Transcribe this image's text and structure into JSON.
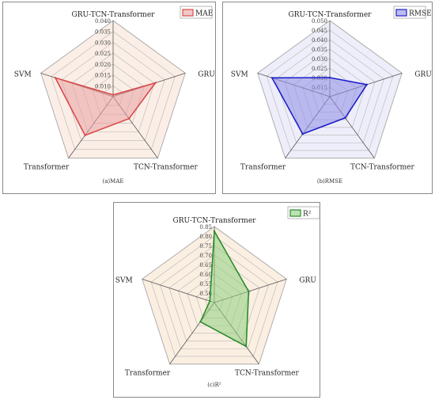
{
  "chart_data": [
    {
      "type": "radar",
      "caption": "(a)MAE",
      "axes": [
        "GRU-TCN-Transformer",
        "GRU",
        "TCN-Transformer",
        "Transformer",
        "SVM"
      ],
      "ticks": [
        "0.010",
        "0.015",
        "0.020",
        "0.025",
        "0.030",
        "0.035",
        "0.040"
      ],
      "rmin": 0.005,
      "rmax": 0.04,
      "series": [
        {
          "name": "MAE",
          "values": [
            0.0058,
            0.0255,
            0.0175,
            0.027,
            0.033
          ]
        }
      ],
      "colors": {
        "line": "#d94a4a",
        "fill": "#e9a2a2",
        "bg": "#fbeee6"
      }
    },
    {
      "type": "radar",
      "caption": "(b)RMSE",
      "axes": [
        "GRU-TCN-Transformer",
        "GRU",
        "TCN-Transformer",
        "Transformer",
        "SVM"
      ],
      "ticks": [
        "0.015",
        "0.020",
        "0.025",
        "0.030",
        "0.035",
        "0.040",
        "0.045",
        "0.050"
      ],
      "rmin": 0.01,
      "rmax": 0.05,
      "series": [
        {
          "name": "RMSE",
          "values": [
            0.02,
            0.0305,
            0.0238,
            0.0343,
            0.042
          ]
        }
      ],
      "colors": {
        "line": "#1f1fc8",
        "fill": "#8e8ee6",
        "bg": "#eeeefa"
      }
    },
    {
      "type": "radar",
      "caption": "(c)R²",
      "axes": [
        "GRU-TCN-Transformer",
        "GRU",
        "TCN-Transformer",
        "Transformer",
        "SVM"
      ],
      "ticks": [
        "0.50",
        "0.55",
        "0.60",
        "0.65",
        "0.70",
        "0.75",
        "0.80",
        "0.85"
      ],
      "rmin": 0.45,
      "rmax": 0.85,
      "series": [
        {
          "name": "R²",
          "values": [
            0.825,
            0.64,
            0.735,
            0.575,
            0.475
          ]
        }
      ],
      "colors": {
        "line": "#2a8a2a",
        "fill": "#8fcf7e",
        "bg": "#fbefe2"
      }
    }
  ]
}
